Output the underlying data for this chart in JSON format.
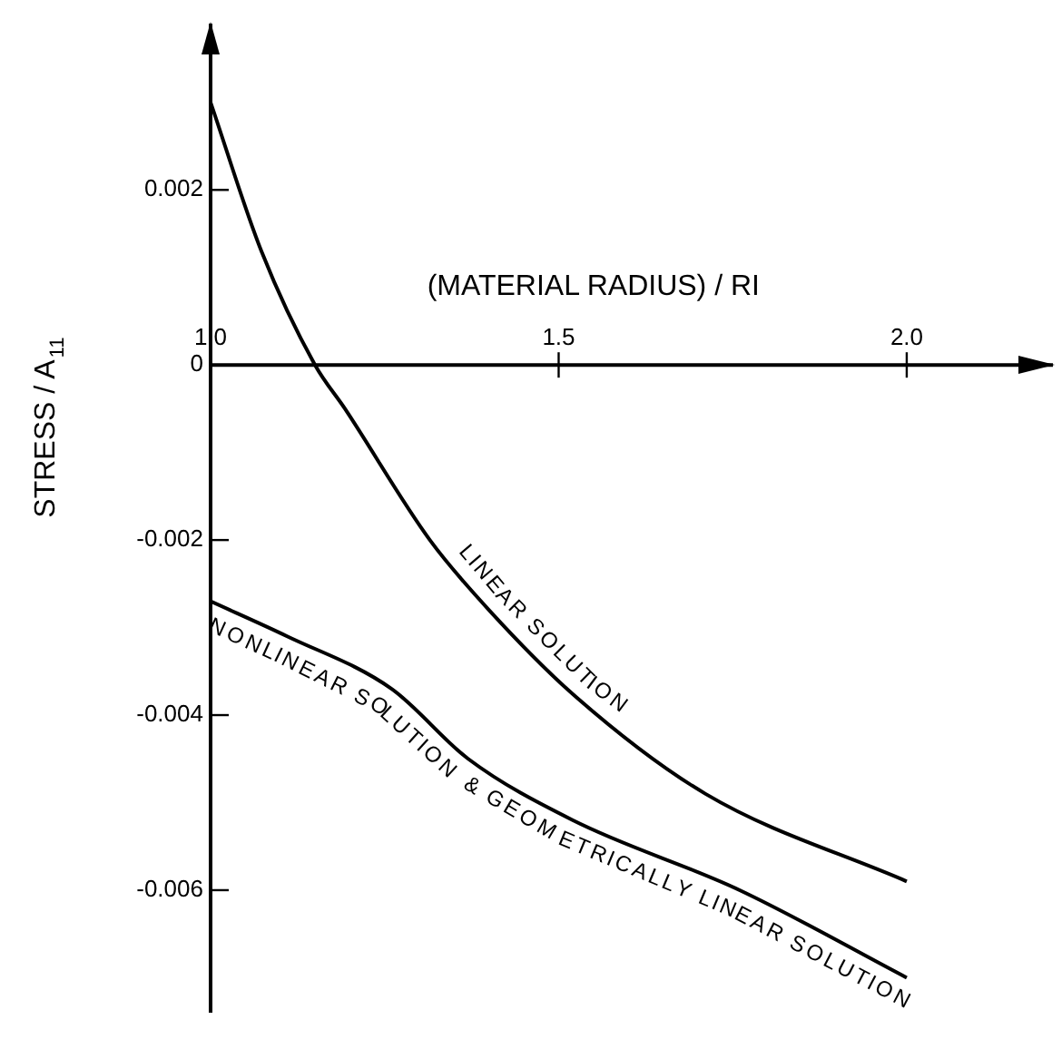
{
  "chart_data": {
    "type": "line",
    "xlabel": "(MATERIAL RADIUS) / RI",
    "ylabel": "STRESS / A$_{11}$",
    "xlim": [
      1.0,
      2.21
    ],
    "ylim": [
      -0.0074,
      0.0039
    ],
    "xticks": [
      {
        "value": 1,
        "label": "1.0"
      },
      1.5,
      {
        "value": 2,
        "label": "2.0"
      }
    ],
    "yticks": [
      0.002,
      0,
      -0.002,
      -0.004,
      -0.006
    ],
    "grid": false,
    "legend": false,
    "series": [
      {
        "name": "LINEAR SOLUTION",
        "color": "#000000",
        "x": [
          1.0,
          1.073,
          1.15,
          1.193,
          1.315,
          1.4,
          1.526,
          1.711,
          2.0
        ],
        "values": [
          0.003,
          0.0013,
          0,
          -0.0005,
          -0.002,
          -0.0028,
          -0.0038,
          -0.0049,
          -0.0059
        ]
      },
      {
        "name": "NONLINEAR SOLUTION & GEOMETRICALLY LINEAR SOLUTION",
        "color": "#000000",
        "x": [
          1.0,
          1.11,
          1.26,
          1.37,
          1.52,
          1.76,
          2.0
        ],
        "values": [
          -0.0027,
          -0.0031,
          -0.0037,
          -0.0045,
          -0.0052,
          -0.006,
          -0.007
        ]
      }
    ]
  }
}
